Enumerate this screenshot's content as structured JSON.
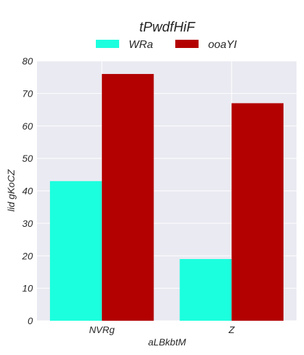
{
  "chart_data": {
    "type": "bar",
    "title": "tPwdfHiF",
    "xlabel": "aLBkbtM",
    "ylabel": "lid gKoCZ",
    "categories": [
      "NVRg",
      "Z"
    ],
    "series": [
      {
        "name": "WRa",
        "values": [
          43,
          19
        ],
        "color": "#1cffde"
      },
      {
        "name": "ooaYI",
        "values": [
          76,
          67
        ],
        "color": "#b30000"
      }
    ],
    "ylim": [
      0,
      80
    ],
    "yticks": [
      0,
      10,
      20,
      30,
      40,
      50,
      60,
      70,
      80
    ],
    "grid": true,
    "legend_position": "top-center",
    "plot_background": "#eaeaf2",
    "grid_color": "#ffffff"
  }
}
